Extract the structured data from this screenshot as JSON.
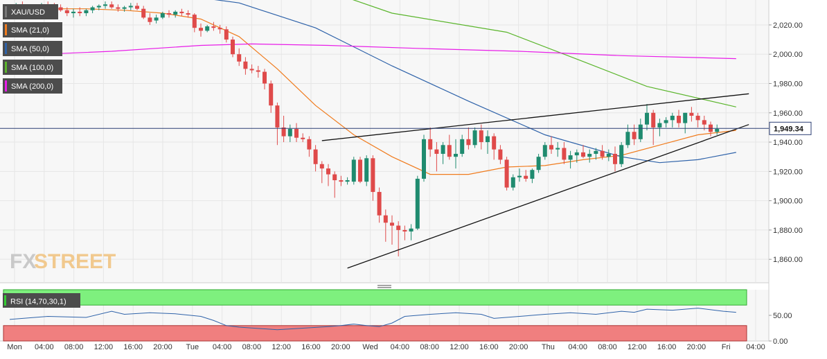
{
  "chart_data": [
    {
      "type": "candlestick",
      "symbol": "XAU/USD",
      "last_price": 1949.34,
      "last_price_label": "1,949.34",
      "ylim": [
        1844,
        2037
      ],
      "y_ticks": [
        1860,
        1880,
        1900,
        1920,
        1940,
        1960,
        1980,
        2000,
        2020
      ],
      "y_tick_labels": [
        "1,860.00",
        "1,880.00",
        "1,900.00",
        "1,920.00",
        "1,940.00",
        "1,960.00",
        "1,980.00",
        "2,000.00",
        "2,020.00"
      ],
      "x_tick_labels": [
        "Mon",
        "04:00",
        "08:00",
        "12:00",
        "16:00",
        "20:00",
        "Tue",
        "04:00",
        "08:00",
        "12:00",
        "16:00",
        "20:00",
        "Wed",
        "04:00",
        "08:00",
        "12:00",
        "16:00",
        "20:00",
        "Thu",
        "04:00",
        "08:00",
        "12:00",
        "16:00",
        "20:00",
        "Fri",
        "04:00"
      ],
      "grid": true,
      "legend": [
        {
          "label": "SMA (21,0)",
          "color": "#f07b1d"
        },
        {
          "label": "SMA (50,0)",
          "color": "#2e62a9"
        },
        {
          "label": "SMA (100,0)",
          "color": "#5ab52b"
        },
        {
          "label": "SMA (200,0)",
          "color": "#e81ce8"
        }
      ],
      "colors": {
        "up": "#1f8b6f",
        "down": "#df4a4a",
        "last_price_bg": "#ffffff",
        "last_price_line": "#2b3e73"
      },
      "candles": [
        [
          2032,
          2034,
          2029,
          2031
        ],
        [
          2031,
          2035,
          2029,
          2033
        ],
        [
          2033,
          2036,
          2030,
          2032
        ],
        [
          2032,
          2034,
          2028,
          2030
        ],
        [
          2030,
          2033,
          2027,
          2031
        ],
        [
          2031,
          2035,
          2030,
          2034
        ],
        [
          2034,
          2036,
          2031,
          2033
        ],
        [
          2033,
          2035,
          2030,
          2032
        ],
        [
          2032,
          2034,
          2029,
          2030
        ],
        [
          2030,
          2032,
          2026,
          2028
        ],
        [
          2028,
          2031,
          2025,
          2029
        ],
        [
          2029,
          2032,
          2026,
          2028
        ],
        [
          2028,
          2031,
          2026,
          2030
        ],
        [
          2030,
          2033,
          2028,
          2032
        ],
        [
          2032,
          2034,
          2030,
          2033
        ],
        [
          2033,
          2036,
          2031,
          2034
        ],
        [
          2034,
          2036,
          2031,
          2032
        ],
        [
          2032,
          2034,
          2029,
          2031
        ],
        [
          2031,
          2033,
          2029,
          2032
        ],
        [
          2032,
          2035,
          2030,
          2033
        ],
        [
          2033,
          2035,
          2030,
          2031
        ],
        [
          2031,
          2033,
          2024,
          2025
        ],
        [
          2025,
          2028,
          2020,
          2022
        ],
        [
          2023,
          2027,
          2021,
          2025
        ],
        [
          2025,
          2029,
          2024,
          2028
        ],
        [
          2028,
          2030,
          2025,
          2027
        ],
        [
          2027,
          2030,
          2025,
          2029
        ],
        [
          2029,
          2031,
          2026,
          2028
        ],
        [
          2028,
          2030,
          2025,
          2027
        ],
        [
          2027,
          2028,
          2015,
          2018
        ],
        [
          2018,
          2021,
          2012,
          2016
        ],
        [
          2016,
          2020,
          2015,
          2019
        ],
        [
          2019,
          2022,
          2016,
          2018
        ],
        [
          2018,
          2020,
          2014,
          2017
        ],
        [
          2017,
          2019,
          2008,
          2010
        ],
        [
          2010,
          2012,
          1998,
          2000
        ],
        [
          2000,
          2004,
          1992,
          1995
        ],
        [
          1995,
          1998,
          1986,
          1990
        ],
        [
          1990,
          1993,
          1987,
          1989
        ],
        [
          1989,
          1992,
          1984,
          1988
        ],
        [
          1988,
          1990,
          1976,
          1980
        ],
        [
          1980,
          1982,
          1960,
          1965
        ],
        [
          1965,
          1967,
          1938,
          1950
        ],
        [
          1950,
          1958,
          1940,
          1944
        ],
        [
          1944,
          1952,
          1940,
          1949
        ],
        [
          1949,
          1953,
          1940,
          1943
        ],
        [
          1943,
          1946,
          1940,
          1942
        ],
        [
          1942,
          1944,
          1930,
          1935
        ],
        [
          1935,
          1938,
          1920,
          1925
        ],
        [
          1925,
          1927,
          1912,
          1922
        ],
        [
          1922,
          1925,
          1910,
          1918
        ],
        [
          1918,
          1920,
          1902,
          1914
        ],
        [
          1914,
          1917,
          1910,
          1913
        ],
        [
          1913,
          1916,
          1911,
          1914
        ],
        [
          1913,
          1930,
          1911,
          1928
        ],
        [
          1928,
          1930,
          1912,
          1913
        ],
        [
          1913,
          1931,
          1910,
          1929
        ],
        [
          1929,
          1931,
          1900,
          1906
        ],
        [
          1906,
          1909,
          1885,
          1890
        ],
        [
          1890,
          1894,
          1872,
          1885
        ],
        [
          1885,
          1890,
          1870,
          1883
        ],
        [
          1883,
          1886,
          1862,
          1880
        ],
        [
          1880,
          1883,
          1873,
          1879
        ],
        [
          1879,
          1884,
          1873,
          1881
        ],
        [
          1881,
          1917,
          1880,
          1915
        ],
        [
          1915,
          1945,
          1913,
          1942
        ],
        [
          1942,
          1950,
          1930,
          1935
        ],
        [
          1935,
          1940,
          1920,
          1932
        ],
        [
          1932,
          1940,
          1925,
          1938
        ],
        [
          1938,
          1945,
          1928,
          1930
        ],
        [
          1930,
          1942,
          1922,
          1932
        ],
        [
          1932,
          1945,
          1930,
          1942
        ],
        [
          1942,
          1950,
          1935,
          1938
        ],
        [
          1938,
          1950,
          1936,
          1948
        ],
        [
          1948,
          1952,
          1935,
          1940
        ],
        [
          1940,
          1948,
          1932,
          1944
        ],
        [
          1944,
          1946,
          1928,
          1935
        ],
        [
          1935,
          1938,
          1925,
          1928
        ],
        [
          1928,
          1930,
          1907,
          1909
        ],
        [
          1909,
          1918,
          1907,
          1916
        ],
        [
          1916,
          1922,
          1913,
          1917
        ],
        [
          1917,
          1921,
          1913,
          1915
        ],
        [
          1915,
          1922,
          1912,
          1921
        ],
        [
          1921,
          1932,
          1919,
          1930
        ],
        [
          1930,
          1940,
          1928,
          1938
        ],
        [
          1938,
          1944,
          1932,
          1935
        ],
        [
          1935,
          1940,
          1930,
          1936
        ],
        [
          1936,
          1940,
          1925,
          1928
        ],
        [
          1928,
          1934,
          1922,
          1931
        ],
        [
          1931,
          1935,
          1926,
          1933
        ],
        [
          1933,
          1938,
          1929,
          1930
        ],
        [
          1930,
          1935,
          1926,
          1932
        ],
        [
          1932,
          1936,
          1928,
          1934
        ],
        [
          1934,
          1938,
          1928,
          1930
        ],
        [
          1930,
          1935,
          1927,
          1932
        ],
        [
          1932,
          1937,
          1920,
          1925
        ],
        [
          1925,
          1940,
          1923,
          1938
        ],
        [
          1938,
          1952,
          1936,
          1947
        ],
        [
          1947,
          1952,
          1938,
          1942
        ],
        [
          1942,
          1956,
          1940,
          1952
        ],
        [
          1952,
          1966,
          1948,
          1960
        ],
        [
          1960,
          1962,
          1938,
          1950
        ],
        [
          1950,
          1956,
          1944,
          1953
        ],
        [
          1953,
          1957,
          1950,
          1955
        ],
        [
          1955,
          1960,
          1950,
          1958
        ],
        [
          1958,
          1962,
          1950,
          1953
        ],
        [
          1953,
          1960,
          1946,
          1960
        ],
        [
          1960,
          1964,
          1954,
          1958
        ],
        [
          1958,
          1960,
          1950,
          1955
        ],
        [
          1955,
          1958,
          1948,
          1952
        ],
        [
          1952,
          1954,
          1944,
          1947
        ],
        [
          1947,
          1952,
          1945,
          1949
        ]
      ],
      "sma": [
        {
          "name": "SMA (21,0)",
          "color": "#f07b1d",
          "points": [
            [
              0,
              2031
            ],
            [
              6,
              2031
            ],
            [
              12,
              2031
            ],
            [
              18,
              2030
            ],
            [
              24,
              2028
            ],
            [
              30,
              2024
            ],
            [
              36,
              2012
            ],
            [
              42,
              1990
            ],
            [
              48,
              1965
            ],
            [
              54,
              1945
            ],
            [
              60,
              1930
            ],
            [
              66,
              1918
            ],
            [
              72,
              1918
            ],
            [
              78,
              1923
            ],
            [
              84,
              1924
            ],
            [
              90,
              1928
            ],
            [
              96,
              1931
            ],
            [
              102,
              1938
            ],
            [
              108,
              1945
            ],
            [
              114,
              1948
            ]
          ]
        },
        {
          "name": "SMA (50,0)",
          "color": "#2e62a9",
          "points": [
            [
              0,
              2042
            ],
            [
              24,
              2042
            ],
            [
              36,
              2035
            ],
            [
              48,
              2018
            ],
            [
              60,
              1992
            ],
            [
              72,
              1968
            ],
            [
              84,
              1945
            ],
            [
              96,
              1930
            ],
            [
              102,
              1926
            ],
            [
              108,
              1928
            ],
            [
              114,
              1933
            ]
          ]
        },
        {
          "name": "SMA (100,0)",
          "color": "#5ab52b",
          "points": [
            [
              0,
              2060
            ],
            [
              30,
              2058
            ],
            [
              48,
              2046
            ],
            [
              60,
              2028
            ],
            [
              78,
              2015
            ],
            [
              90,
              1995
            ],
            [
              100,
              1978
            ],
            [
              114,
              1964
            ]
          ]
        },
        {
          "name": "SMA (200,0)",
          "color": "#e81ce8",
          "points": [
            [
              0,
              1999
            ],
            [
              16,
              2002
            ],
            [
              30,
              2006
            ],
            [
              38,
              2007
            ],
            [
              50,
              2006
            ],
            [
              64,
              2004
            ],
            [
              80,
              2002
            ],
            [
              96,
              1999
            ],
            [
              114,
              1997
            ]
          ]
        }
      ],
      "trendlines": [
        {
          "name": "upper",
          "points": [
            [
              49,
              1941
            ],
            [
              116,
              1973
            ]
          ]
        },
        {
          "name": "lower",
          "points": [
            [
              53,
              1854
            ],
            [
              116,
              1952
            ]
          ]
        }
      ]
    },
    {
      "type": "line",
      "label": "RSI (14,70,30,1)",
      "ylim": [
        0,
        100
      ],
      "y_ticks": [
        0,
        50
      ],
      "y_tick_labels": [
        "0.00",
        "50.00"
      ],
      "bands": {
        "overbought": 70,
        "oversold": 30,
        "overbought_color": "#7ef07e",
        "oversold_color": "#f07f7f"
      },
      "color": "#2e62a9",
      "points": [
        [
          0,
          42
        ],
        [
          6,
          48
        ],
        [
          12,
          46
        ],
        [
          16,
          58
        ],
        [
          18,
          52
        ],
        [
          22,
          55
        ],
        [
          26,
          53
        ],
        [
          30,
          48
        ],
        [
          32,
          40
        ],
        [
          34,
          30
        ],
        [
          36,
          27
        ],
        [
          42,
          22
        ],
        [
          46,
          25
        ],
        [
          50,
          28
        ],
        [
          52,
          30
        ],
        [
          54,
          33
        ],
        [
          56,
          30
        ],
        [
          58,
          28
        ],
        [
          60,
          35
        ],
        [
          62,
          48
        ],
        [
          66,
          52
        ],
        [
          70,
          55
        ],
        [
          74,
          52
        ],
        [
          76,
          44
        ],
        [
          80,
          48
        ],
        [
          84,
          52
        ],
        [
          88,
          55
        ],
        [
          92,
          52
        ],
        [
          96,
          58
        ],
        [
          98,
          56
        ],
        [
          100,
          62
        ],
        [
          104,
          60
        ],
        [
          108,
          64
        ],
        [
          112,
          58
        ],
        [
          114,
          56
        ]
      ]
    }
  ]
}
